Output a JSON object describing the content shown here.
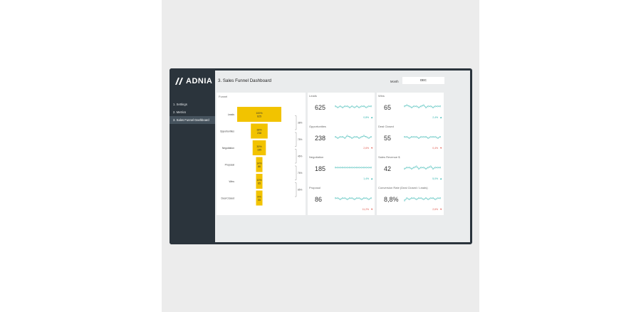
{
  "sidebar": {
    "logo_text": "ADNIA",
    "items": [
      {
        "label": "1. Settings"
      },
      {
        "label": "2. Metrics"
      },
      {
        "label": "3. Sales Funnel Dashboard"
      }
    ]
  },
  "header": {
    "title": "3. Sales Funnel Dashboard",
    "month_label": "Month",
    "month_value": "DEC"
  },
  "funnel": {
    "title": "Funnel",
    "stages": [
      {
        "label": "Leads",
        "pct": "100%",
        "value": "625",
        "width_ratio": 1.0
      },
      {
        "label": "Opportunities",
        "pct": "38%",
        "value": "238",
        "width_ratio": 0.38
      },
      {
        "label": "Negotiation",
        "pct": "30%",
        "value": "185",
        "width_ratio": 0.3
      },
      {
        "label": "Proposal",
        "pct": "14%",
        "value": "86",
        "width_ratio": 0.14
      },
      {
        "label": "Wins",
        "pct": "10%",
        "value": "65",
        "width_ratio": 0.1
      },
      {
        "label": "Deal Closed",
        "pct": "9%",
        "value": "55",
        "width_ratio": 0.09
      }
    ],
    "conversions": [
      "38%",
      "78%",
      "46%",
      "76%",
      "85%"
    ]
  },
  "metrics": [
    {
      "title": "Leads",
      "value": "625",
      "change": "0,8%",
      "dir": "up",
      "spark": [
        5,
        4,
        5,
        4,
        5,
        5,
        4,
        5,
        4,
        5,
        4,
        5,
        5,
        4,
        5,
        5
      ]
    },
    {
      "title": "Wins",
      "value": "65",
      "change": "2,4%",
      "dir": "up",
      "spark": [
        5,
        6,
        5,
        4,
        5,
        5,
        4,
        5,
        6,
        4,
        5,
        5,
        4,
        5,
        5,
        5
      ]
    },
    {
      "title": "Opportunities",
      "value": "238",
      "change": "2,6%",
      "dir": "down",
      "spark": [
        5,
        4,
        5,
        5,
        4,
        6,
        5,
        4,
        5,
        5,
        4,
        5,
        6,
        5,
        4,
        5
      ]
    },
    {
      "title": "Deal Closed",
      "value": "55",
      "change": "0,4%",
      "dir": "down",
      "spark": [
        5,
        5,
        4,
        5,
        5,
        5,
        4,
        5,
        5,
        5,
        4,
        5,
        5,
        5,
        4,
        5
      ]
    },
    {
      "title": "Negotiation",
      "value": "185",
      "change": "1,4%",
      "dir": "up",
      "spark": [
        5,
        5,
        5,
        5,
        5,
        5,
        5,
        5,
        5,
        5,
        5,
        5,
        5,
        5,
        5,
        5
      ]
    },
    {
      "title": "Sales Revenue $",
      "value": "42",
      "change": "5,0%",
      "dir": "up",
      "spark": [
        4,
        5,
        5,
        4,
        5,
        6,
        4,
        5,
        5,
        4,
        5,
        6,
        4,
        5,
        5,
        5
      ]
    },
    {
      "title": "Proposal",
      "value": "86",
      "change": "11,2%",
      "dir": "down",
      "spark": [
        5,
        5,
        4,
        5,
        5,
        4,
        5,
        5,
        4,
        5,
        5,
        4,
        5,
        5,
        4,
        5
      ]
    },
    {
      "title": "Conversion Rate (Deal Closed / Leads)",
      "value": "8,8%",
      "change": "2,6%",
      "dir": "down",
      "spark": [
        3,
        5,
        4,
        5,
        5,
        4,
        5,
        5,
        4,
        5,
        4,
        5,
        5,
        4,
        5,
        5
      ]
    }
  ],
  "colors": {
    "accent": "#f2c300",
    "spark": "#2bb3ad",
    "up": "#2bb3ad",
    "down": "#e0564b"
  }
}
